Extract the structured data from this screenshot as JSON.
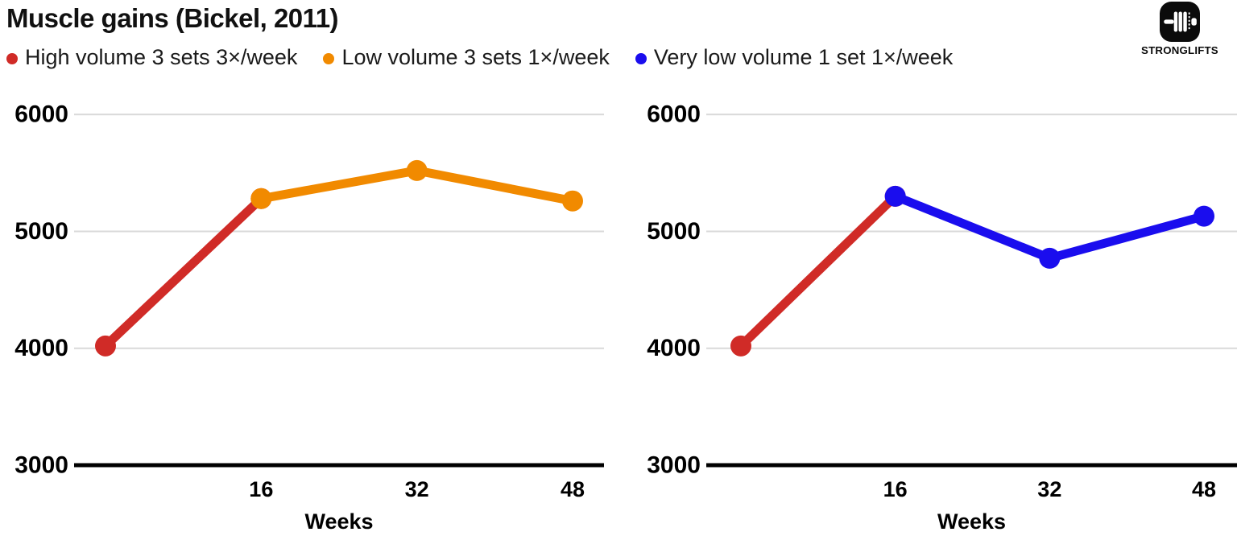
{
  "header": {
    "title": "Muscle gains (Bickel, 2011)",
    "brand": "STRONGLIFTS"
  },
  "legend": {
    "items": [
      {
        "label": "High volume 3 sets 3×/week",
        "color": "#d02b27"
      },
      {
        "label": "Low volume 3 sets 1×/week",
        "color": "#f18a00"
      },
      {
        "label": "Very low volume 1 set 1×/week",
        "color": "#1a0dee"
      }
    ]
  },
  "chart_data": [
    {
      "type": "line",
      "panel": "left",
      "xlabel": "Weeks",
      "x_ticks": [
        16,
        32,
        48
      ],
      "x_range": [
        0,
        48
      ],
      "y_ticks": [
        3000,
        4000,
        5000,
        6000
      ],
      "y_range": [
        3000,
        6150
      ],
      "grid": true,
      "legend_position": "top",
      "series": [
        {
          "name": "High volume 3 sets 3×/week",
          "color": "#d02b27",
          "x": [
            0,
            16
          ],
          "values": [
            4020,
            5280
          ]
        },
        {
          "name": "Low volume 3 sets 1×/week",
          "color": "#f18a00",
          "x": [
            16,
            32,
            48
          ],
          "values": [
            5280,
            5520,
            5260
          ]
        }
      ]
    },
    {
      "type": "line",
      "panel": "right",
      "xlabel": "Weeks",
      "x_ticks": [
        16,
        32,
        48
      ],
      "x_range": [
        0,
        48
      ],
      "y_ticks": [
        3000,
        4000,
        5000,
        6000
      ],
      "y_range": [
        3000,
        6150
      ],
      "grid": true,
      "legend_position": "top",
      "series": [
        {
          "name": "High volume 3 sets 3×/week",
          "color": "#d02b27",
          "x": [
            0,
            16
          ],
          "values": [
            4020,
            5300
          ]
        },
        {
          "name": "Very low volume 1 set 1×/week",
          "color": "#1a0dee",
          "x": [
            16,
            32,
            48
          ],
          "values": [
            5300,
            4770,
            5130
          ]
        }
      ]
    }
  ]
}
